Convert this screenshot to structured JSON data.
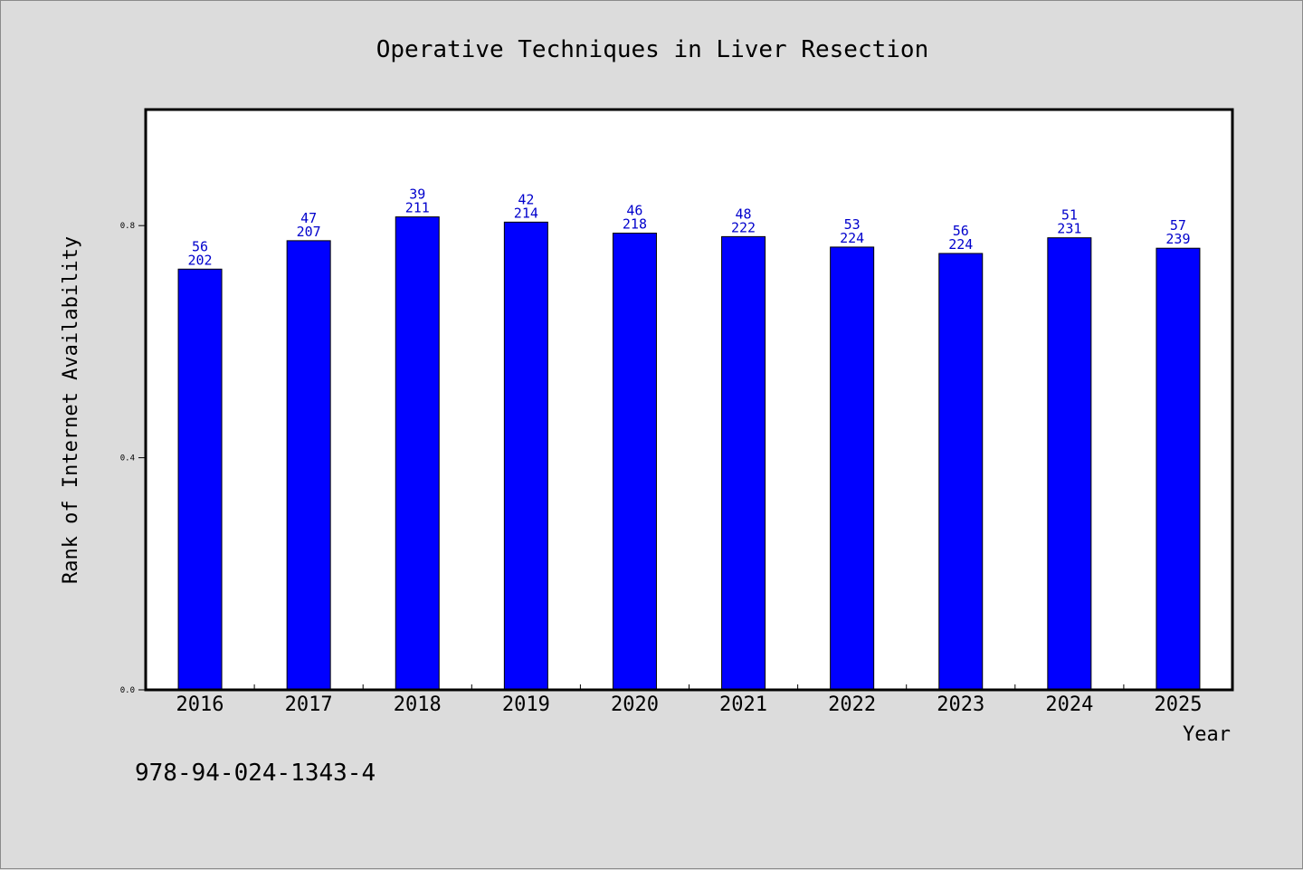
{
  "chart_data": {
    "type": "bar",
    "title": "Operative Techniques in Liver Resection",
    "xlabel": "Year",
    "ylabel": "Rank of Internet Availability",
    "categories": [
      "2016",
      "2017",
      "2018",
      "2019",
      "2020",
      "2021",
      "2022",
      "2023",
      "2024",
      "2025"
    ],
    "values": [
      0.725,
      0.774,
      0.815,
      0.806,
      0.787,
      0.781,
      0.763,
      0.752,
      0.779,
      0.761
    ],
    "label_top": [
      "56",
      "47",
      "39",
      "42",
      "46",
      "48",
      "53",
      "56",
      "51",
      "57"
    ],
    "label_bottom": [
      "202",
      "207",
      "211",
      "214",
      "218",
      "222",
      "224",
      "224",
      "231",
      "239"
    ],
    "yticks": [
      0.0,
      0.4,
      0.8
    ],
    "ytick_labels": [
      "0.0",
      "0.4",
      "0.8"
    ],
    "ylim": [
      0,
      1.0
    ],
    "bar_color": "#0000ff",
    "grid": false,
    "legend": "none"
  },
  "footer": {
    "isbn": "978-94-024-1343-4"
  }
}
